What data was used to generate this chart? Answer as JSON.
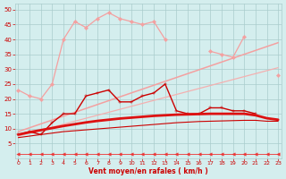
{
  "x": [
    0,
    1,
    2,
    3,
    4,
    5,
    6,
    7,
    8,
    9,
    10,
    11,
    12,
    13,
    14,
    15,
    16,
    17,
    18,
    19,
    20,
    21,
    22,
    23
  ],
  "series": [
    {
      "name": "upper_light_pink",
      "color": "#f4a0a0",
      "linewidth": 0.9,
      "marker": "D",
      "markersize": 2.2,
      "y": [
        23,
        21,
        20,
        25,
        40,
        46,
        44,
        47,
        49,
        47,
        46,
        45,
        46,
        40,
        null,
        null,
        null,
        null,
        null,
        null,
        null,
        null,
        null,
        null
      ]
    },
    {
      "name": "mid_pink_right",
      "color": "#f4a0a0",
      "linewidth": 0.9,
      "marker": "D",
      "markersize": 2.2,
      "y": [
        null,
        null,
        null,
        null,
        null,
        null,
        null,
        null,
        null,
        null,
        null,
        null,
        null,
        null,
        null,
        null,
        null,
        36,
        35,
        34,
        41,
        null,
        null,
        28
      ]
    },
    {
      "name": "linear_upper",
      "color": "#f4a0a0",
      "linewidth": 1.1,
      "marker": null,
      "markersize": 0,
      "y": [
        9,
        10.3,
        11.6,
        12.9,
        14.2,
        15.5,
        16.8,
        18.1,
        19.4,
        20.7,
        22,
        23.3,
        24.6,
        25.9,
        27.2,
        28.5,
        29.8,
        31.1,
        32.4,
        33.7,
        35,
        36.3,
        37.6,
        38.9
      ]
    },
    {
      "name": "linear_lower",
      "color": "#f4b0b0",
      "linewidth": 0.9,
      "marker": null,
      "markersize": 0,
      "y": [
        7.5,
        8.5,
        9.5,
        10.5,
        11.5,
        12.5,
        13.5,
        14.5,
        15.5,
        16.5,
        17.5,
        18.5,
        19.5,
        20.5,
        21.5,
        22.5,
        23.5,
        24.5,
        25.5,
        26.5,
        27.5,
        28.5,
        29.5,
        30.5
      ]
    },
    {
      "name": "dark_red_markers",
      "color": "#cc0000",
      "linewidth": 1.0,
      "marker": "+",
      "markersize": 3.5,
      "y": [
        8,
        9,
        8,
        12,
        15,
        15,
        21,
        22,
        23,
        19,
        19,
        21,
        22,
        25,
        16,
        15,
        15,
        17,
        17,
        16,
        16,
        15,
        null,
        null
      ]
    },
    {
      "name": "dark_red_smooth_thick",
      "color": "#dd1111",
      "linewidth": 2.0,
      "marker": null,
      "markersize": 0,
      "y": [
        8,
        8.8,
        9.5,
        10.2,
        10.9,
        11.5,
        12.1,
        12.6,
        13.0,
        13.4,
        13.7,
        14.0,
        14.3,
        14.5,
        14.7,
        14.8,
        14.9,
        15.0,
        15.0,
        15.0,
        15.0,
        14.5,
        13.5,
        13.0
      ]
    },
    {
      "name": "dark_red_lower_line",
      "color": "#cc0000",
      "linewidth": 0.8,
      "marker": null,
      "markersize": 0,
      "y": [
        7,
        7.5,
        8,
        8.5,
        9,
        9.3,
        9.6,
        9.9,
        10.2,
        10.5,
        10.8,
        11.1,
        11.4,
        11.7,
        12.0,
        12.2,
        12.4,
        12.5,
        12.6,
        12.7,
        12.8,
        12.8,
        12.5,
        12.5
      ]
    },
    {
      "name": "bottom_arrows",
      "color": "#ee3333",
      "linewidth": 0.6,
      "marker": "<",
      "markersize": 2.5,
      "y": [
        1.5,
        1.5,
        1.5,
        1.5,
        1.5,
        1.5,
        1.5,
        1.5,
        1.5,
        1.5,
        1.5,
        1.5,
        1.5,
        1.5,
        1.5,
        1.5,
        1.5,
        1.5,
        1.5,
        1.5,
        1.5,
        1.5,
        1.5,
        1.5
      ]
    }
  ],
  "xlim": [
    -0.3,
    23.3
  ],
  "ylim": [
    0,
    52
  ],
  "yticks": [
    5,
    10,
    15,
    20,
    25,
    30,
    35,
    40,
    45,
    50
  ],
  "xticks": [
    0,
    1,
    2,
    3,
    4,
    5,
    6,
    7,
    8,
    9,
    10,
    11,
    12,
    13,
    14,
    15,
    16,
    17,
    18,
    19,
    20,
    21,
    22,
    23
  ],
  "xlabel": "Vent moyen/en rafales ( km/h )",
  "background_color": "#d4eeee",
  "grid_color": "#aacccc",
  "tick_color": "#cc0000",
  "label_color": "#cc0000"
}
